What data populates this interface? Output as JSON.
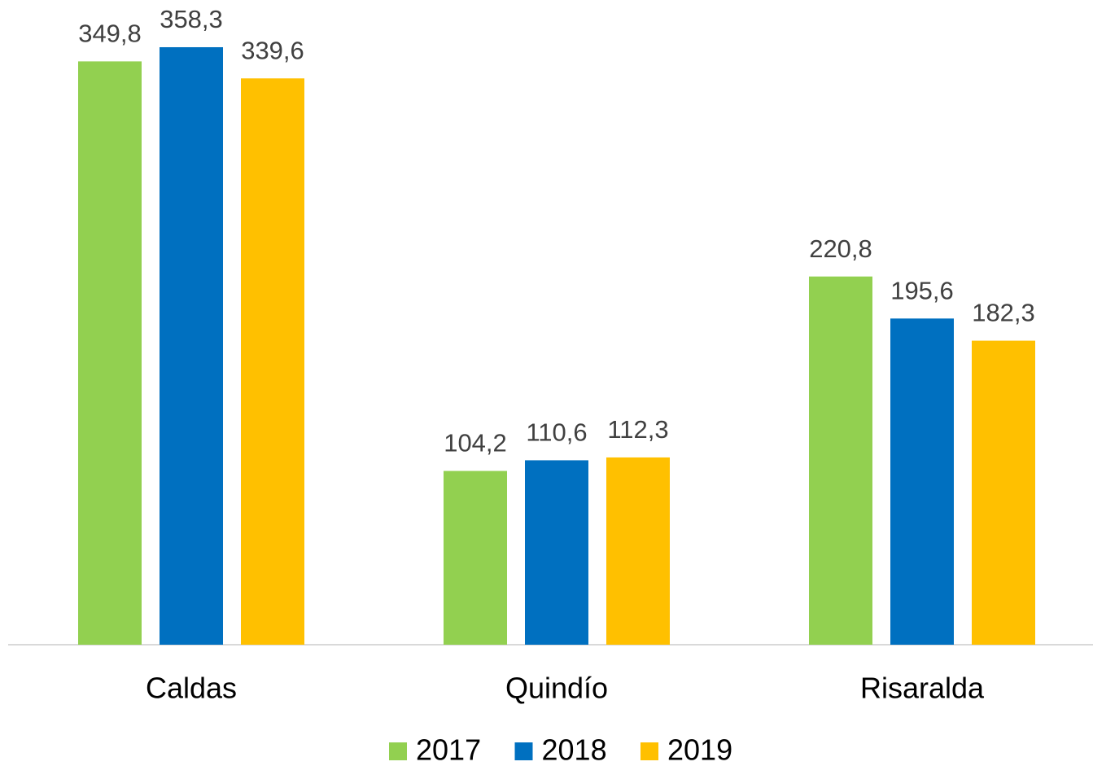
{
  "chart_data": {
    "type": "bar",
    "categories": [
      "Caldas",
      "Quindío",
      "Risaralda"
    ],
    "series": [
      {
        "name": "2017",
        "color": "#92d050",
        "values": [
          349.8,
          104.2,
          220.8
        ],
        "value_labels": [
          "349,8",
          "104,2",
          "220,8"
        ]
      },
      {
        "name": "2018",
        "color": "#0070c0",
        "values": [
          358.3,
          110.6,
          195.6
        ],
        "value_labels": [
          "358,3",
          "110,6",
          "195,6"
        ]
      },
      {
        "name": "2019",
        "color": "#ffc000",
        "values": [
          339.6,
          112.3,
          182.3
        ],
        "value_labels": [
          "339,6",
          "112,3",
          "182,3"
        ]
      }
    ]
  }
}
